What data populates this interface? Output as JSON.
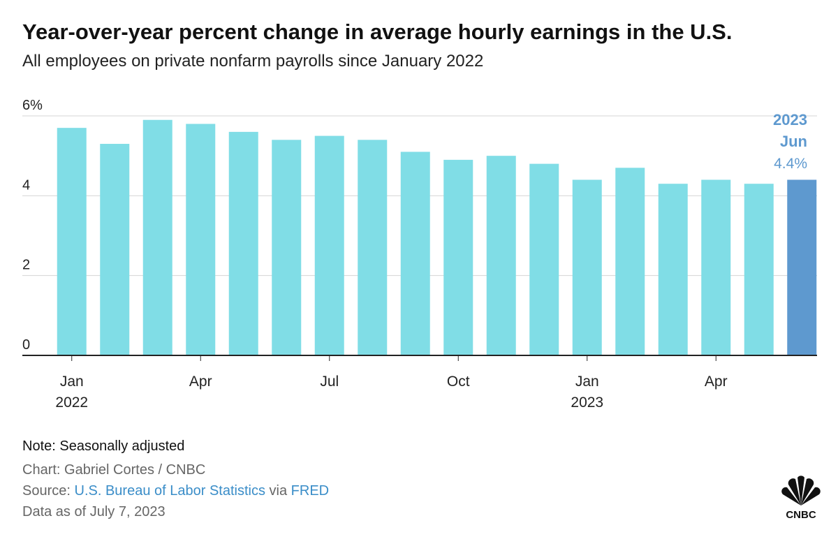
{
  "chart_data": {
    "type": "bar",
    "title": "Year-over-year percent change in average hourly earnings in the U.S.",
    "subtitle": "All employees on private nonfarm payrolls since January 2022",
    "categories": [
      "Jan",
      null,
      null,
      "Apr",
      null,
      null,
      "Jul",
      null,
      null,
      "Oct",
      null,
      null,
      "Jan",
      null,
      null,
      "Apr",
      null,
      null
    ],
    "years": [
      "2022",
      null,
      null,
      null,
      null,
      null,
      null,
      null,
      null,
      null,
      null,
      null,
      "2023",
      null,
      null,
      null,
      null,
      null
    ],
    "values": [
      5.7,
      5.3,
      5.9,
      5.8,
      5.6,
      5.4,
      5.5,
      5.4,
      5.1,
      4.9,
      5.0,
      4.8,
      4.4,
      4.7,
      4.3,
      4.4,
      4.3,
      4.4
    ],
    "color": "#80dde6",
    "highlight": {
      "index": 17,
      "color": "#5e99cf",
      "year": "2023",
      "month": "Jun",
      "value_label": "4.4%"
    },
    "ylim": [
      0,
      6
    ],
    "yticks": [
      0,
      2,
      4,
      {
        "value": 6,
        "label": "6%"
      }
    ],
    "grid": true
  },
  "footer": {
    "note": "Note: Seasonally adjusted",
    "credit": "Chart: Gabriel Cortes / CNBC",
    "source": {
      "prefix": "Source:",
      "org": "U.S. Bureau of Labor Statistics",
      "via": "via",
      "site": "FRED"
    },
    "date": "Data as of July 7, 2023",
    "logo_text": "CNBC"
  }
}
